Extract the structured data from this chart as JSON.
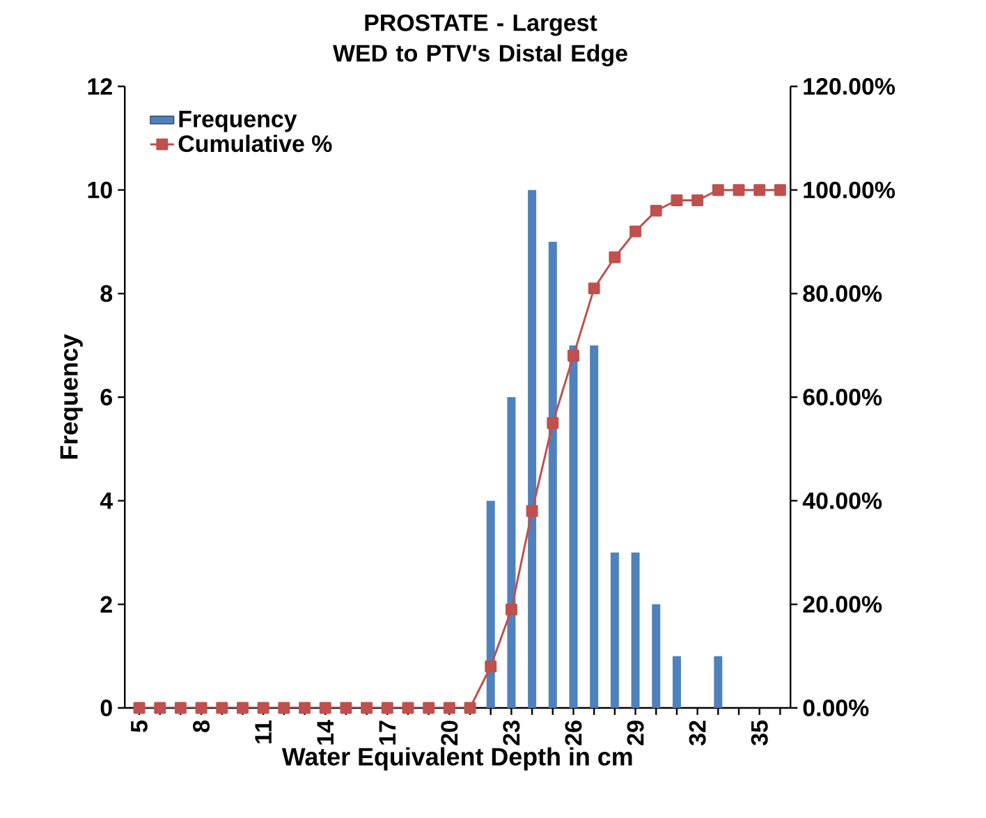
{
  "chart_data": {
    "type": "bar",
    "title": "PROSTATE - Largest WED to PTV's Distal Edge",
    "xlabel": "Water Equivalent Depth in cm",
    "ylabel": "Frequency",
    "categories": [
      "5",
      null,
      null,
      "8",
      null,
      null,
      "11",
      null,
      null,
      "14",
      null,
      null,
      "17",
      null,
      null,
      "20",
      null,
      null,
      "23",
      null,
      null,
      "26",
      null,
      null,
      "29",
      null,
      null,
      "32",
      null,
      null,
      "35",
      null
    ],
    "series": [
      {
        "name": "Frequency",
        "color": "#4f81bd",
        "values": [
          0,
          0,
          0,
          0,
          0,
          0,
          0,
          0,
          0,
          0,
          0,
          0,
          0,
          0,
          0,
          0,
          0,
          4,
          6,
          10,
          9,
          7,
          7,
          3,
          3,
          2,
          1,
          0,
          1,
          0,
          0,
          0
        ]
      },
      {
        "name": "Cumulative %",
        "type": "line",
        "axis": "y2",
        "color": "#c0504d",
        "marker": "square",
        "values": [
          0,
          0,
          0,
          0,
          0,
          0,
          0,
          0,
          0,
          0,
          0,
          0,
          0,
          0,
          0,
          0,
          0,
          8,
          19,
          38,
          55,
          68,
          81,
          87,
          92,
          96,
          98,
          98,
          100,
          100,
          100,
          100
        ]
      }
    ],
    "ylim": [
      0,
      12
    ],
    "yticks": [
      0,
      2,
      4,
      6,
      8,
      10,
      12
    ],
    "y2lim": [
      0,
      120
    ],
    "y2ticks": [
      {
        "value": 0,
        "label": "0.00%"
      },
      {
        "value": 20,
        "label": "20.00%"
      },
      {
        "value": 40,
        "label": "40.00%"
      },
      {
        "value": 60,
        "label": "60.00%"
      },
      {
        "value": 80,
        "label": "80.00%"
      },
      {
        "value": 100,
        "label": "100.00%"
      },
      {
        "value": 120,
        "label": "120.00%"
      }
    ],
    "legend": "top left",
    "grid": false
  }
}
